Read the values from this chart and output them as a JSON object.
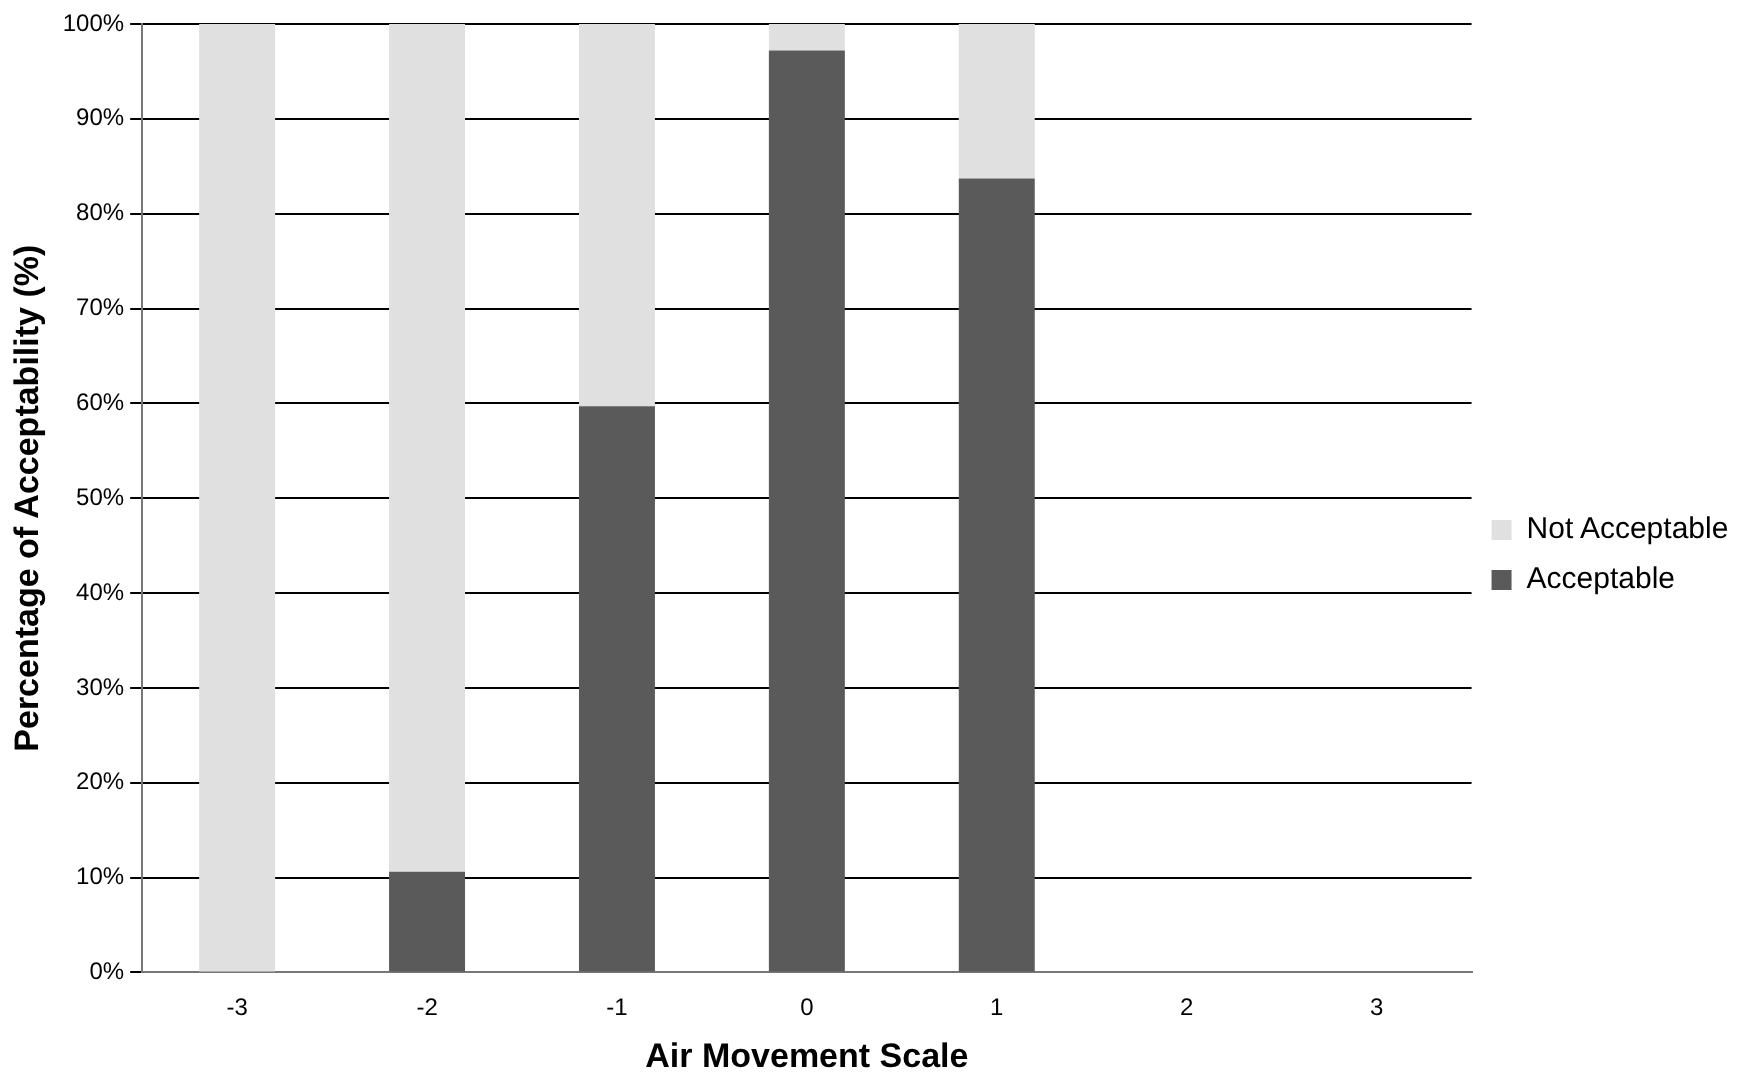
{
  "chart_data": {
    "type": "bar",
    "stacked": true,
    "xlabel": "Air Movement Scale",
    "ylabel": "Percentage of Acceptability (%)",
    "categories": [
      "-3",
      "-2",
      "-1",
      "0",
      "1",
      "2",
      "3"
    ],
    "series": [
      {
        "name": "Acceptable",
        "color": "#5a5a5a",
        "values": [
          0,
          10.6,
          59.7,
          97.2,
          83.7,
          null,
          null
        ]
      },
      {
        "name": "Not Acceptable",
        "color": "#e0e0e0",
        "values": [
          100,
          89.4,
          40.3,
          2.8,
          16.3,
          null,
          null
        ]
      }
    ],
    "ylim": [
      0,
      100
    ],
    "yticks": [
      {
        "value": 0,
        "label": "0%"
      },
      {
        "value": 10,
        "label": "10%"
      },
      {
        "value": 20,
        "label": "20%"
      },
      {
        "value": 30,
        "label": "30%"
      },
      {
        "value": 40,
        "label": "40%"
      },
      {
        "value": 50,
        "label": "50%"
      },
      {
        "value": 60,
        "label": "60%"
      },
      {
        "value": 70,
        "label": "70%"
      },
      {
        "value": 80,
        "label": "80%"
      },
      {
        "value": 90,
        "label": "90%"
      },
      {
        "value": 100,
        "label": "100%"
      }
    ],
    "grid": "y",
    "legend": "right"
  }
}
